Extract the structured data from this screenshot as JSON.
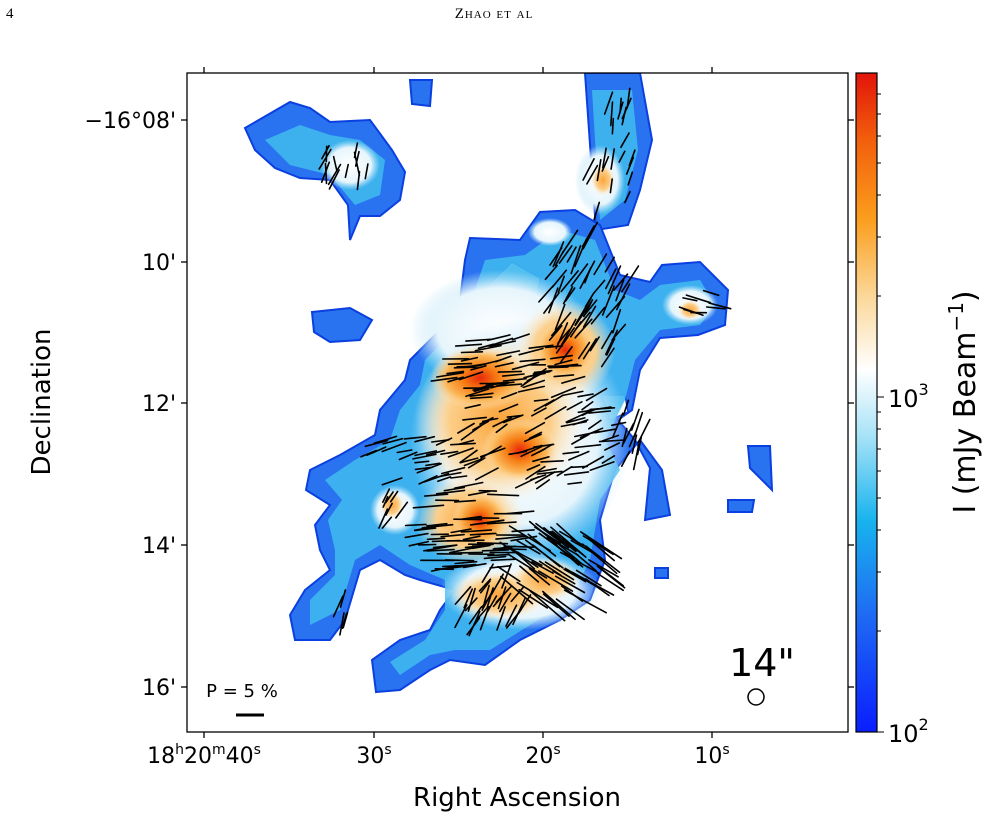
{
  "header": {
    "page_number": "4",
    "running_head": "Zhao et al"
  },
  "figure": {
    "beam_label": "14\"",
    "vector_scale_label": "P = 5 %",
    "colorbar": {
      "label_prefix": "I (mJy Beam",
      "label_exp": "−1",
      "label_suffix": ")",
      "tick_labels": [
        {
          "base": "10",
          "exp": "3"
        },
        {
          "base": "10",
          "exp": "2"
        }
      ]
    },
    "colors": {
      "low": "#0a1eff",
      "mid": "#ffffff",
      "high": "#e8190a"
    }
  },
  "chart_data": {
    "type": "heatmap",
    "xlabel": "Right Ascension",
    "ylabel": "Declination",
    "x_ticks": [
      {
        "label": "18h20m40s",
        "main": "18",
        "h": "h",
        "min": "20",
        "m": "m",
        "sec": "40",
        "s": "s"
      },
      {
        "label": "30s",
        "main": "30",
        "s": "s"
      },
      {
        "label": "20s",
        "main": "20",
        "s": "s"
      },
      {
        "label": "10s",
        "main": "10",
        "s": "s"
      }
    ],
    "y_ticks": [
      "−16°08'",
      "10'",
      "12'",
      "14'",
      "16'"
    ],
    "colorbar_scale": "log",
    "colorbar_range": [
      100,
      8000
    ],
    "grid": false
  }
}
